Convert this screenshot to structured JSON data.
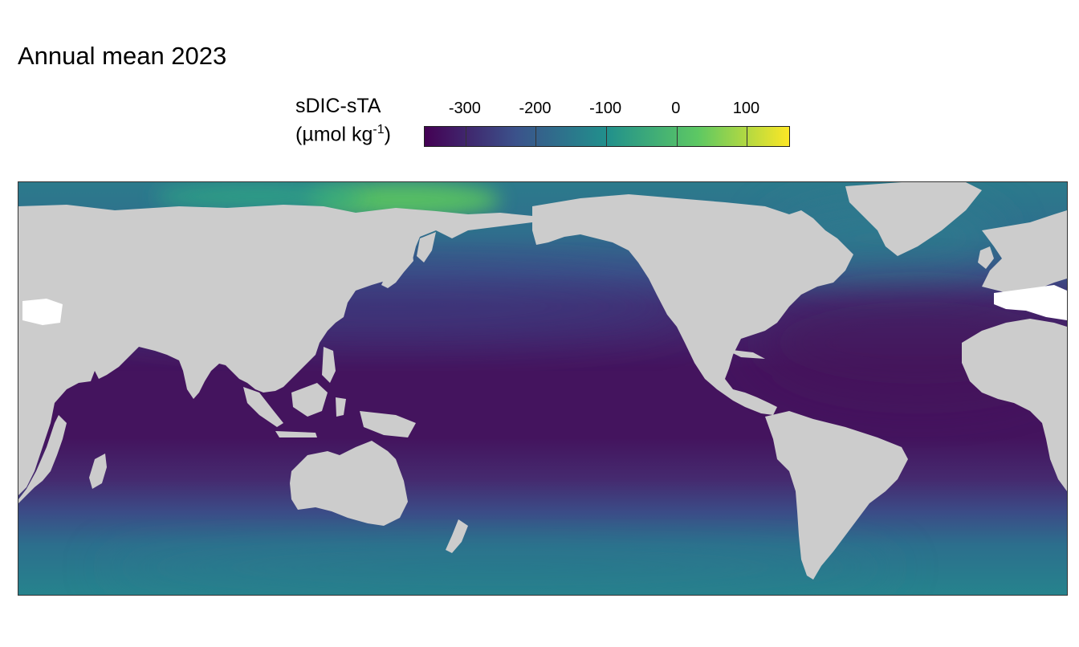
{
  "title": "Annual mean 2023",
  "legend": {
    "title_line1": "sDIC-sTA",
    "title_line2_prefix": "(µmol kg",
    "title_line2_sup": "-1",
    "title_line2_suffix": ")",
    "ticks": [
      "-300",
      "-200",
      "-100",
      "0",
      "100"
    ],
    "tick_values": [
      -300,
      -200,
      -100,
      0,
      100
    ],
    "range": [
      -358,
      160
    ],
    "colormap": "viridis",
    "colors": [
      "#440154",
      "#3b528b",
      "#21908c",
      "#5dc863",
      "#fde725"
    ]
  },
  "map": {
    "projection": "equirectangular, Pacific-centred",
    "land_color": "#cccccc",
    "missing_color": "#ffffff",
    "ocean_fill": "sDIC-sTA annual mean field"
  },
  "chart_data": {
    "type": "heatmap",
    "title": "Annual mean 2023",
    "colorbar_label": "sDIC-sTA (µmol kg-1)",
    "colorbar_ticks": [
      -300,
      -200,
      -100,
      0,
      100
    ],
    "color_range": [
      -358,
      160
    ],
    "regions": [
      {
        "region": "Arctic / Siberian shelf",
        "value": 80
      },
      {
        "region": "Subpolar North Pacific",
        "value": -140
      },
      {
        "region": "Subpolar North Atlantic",
        "value": -150
      },
      {
        "region": "Subtropical / tropical oceans",
        "value": -330
      },
      {
        "region": "Southern Ocean",
        "value": -160
      }
    ]
  }
}
